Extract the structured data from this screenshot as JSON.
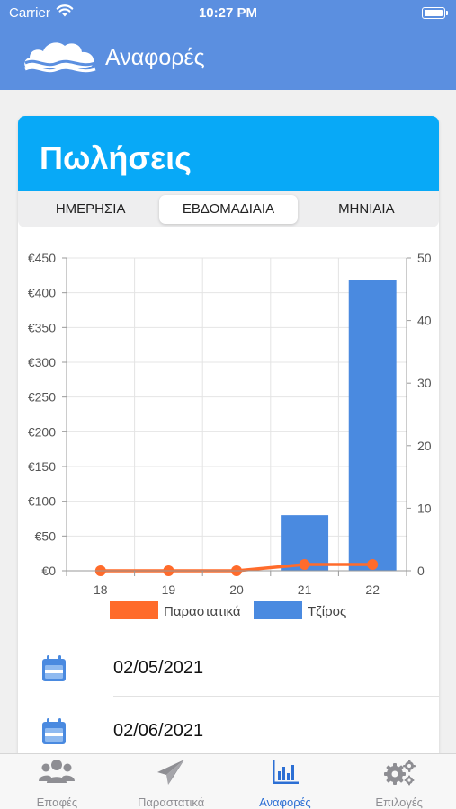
{
  "status_bar": {
    "carrier": "Carrier",
    "time": "10:27 PM"
  },
  "nav": {
    "title": "Αναφορές"
  },
  "card": {
    "title": "Πωλήσεις",
    "segments": [
      {
        "label": "ΗΜΕΡΗΣΙΑ",
        "active": false
      },
      {
        "label": "ΕΒΔΟΜΑΔΙΑΙΑ",
        "active": true
      },
      {
        "label": "ΜΗΝΙΑΙΑ",
        "active": false
      }
    ]
  },
  "chart_data": {
    "type": "bar",
    "categories": [
      "18",
      "19",
      "20",
      "21",
      "22"
    ],
    "series": [
      {
        "name": "Τζίρος",
        "type": "bar",
        "axis": "left",
        "color": "#4a8ae0",
        "values": [
          0,
          0,
          0,
          80,
          418
        ]
      },
      {
        "name": "Παραστατικά",
        "type": "line",
        "axis": "right",
        "color": "#ff6b2b",
        "values": [
          0,
          0,
          0,
          1,
          1
        ]
      }
    ],
    "left_axis": {
      "min": 0,
      "max": 450,
      "step": 50,
      "tick_labels": [
        "€0",
        "€50",
        "€100",
        "€150",
        "€200",
        "€250",
        "€300",
        "€350",
        "€400",
        "€450"
      ]
    },
    "right_axis": {
      "min": 0,
      "max": 50,
      "step": 10,
      "tick_labels": [
        "0",
        "10",
        "20",
        "30",
        "40",
        "50"
      ]
    },
    "grid": true,
    "legend": {
      "position": "bottom",
      "items": [
        "Παραστατικά",
        "Τζίρος"
      ]
    }
  },
  "dates": [
    "02/05/2021",
    "02/06/2021"
  ],
  "tabs": [
    {
      "label": "Επαφές",
      "icon": "contacts-icon",
      "active": false
    },
    {
      "label": "Παραστατικά",
      "icon": "paper-plane-icon",
      "active": false
    },
    {
      "label": "Αναφορές",
      "icon": "bar-chart-icon",
      "active": true
    },
    {
      "label": "Επιλογές",
      "icon": "gears-icon",
      "active": false
    }
  ],
  "colors": {
    "nav_blue": "#5b8fe0",
    "card_header": "#08a9f7",
    "bar": "#4a8ae0",
    "line": "#ff6b2b",
    "active_tab": "#2c6fd4"
  }
}
